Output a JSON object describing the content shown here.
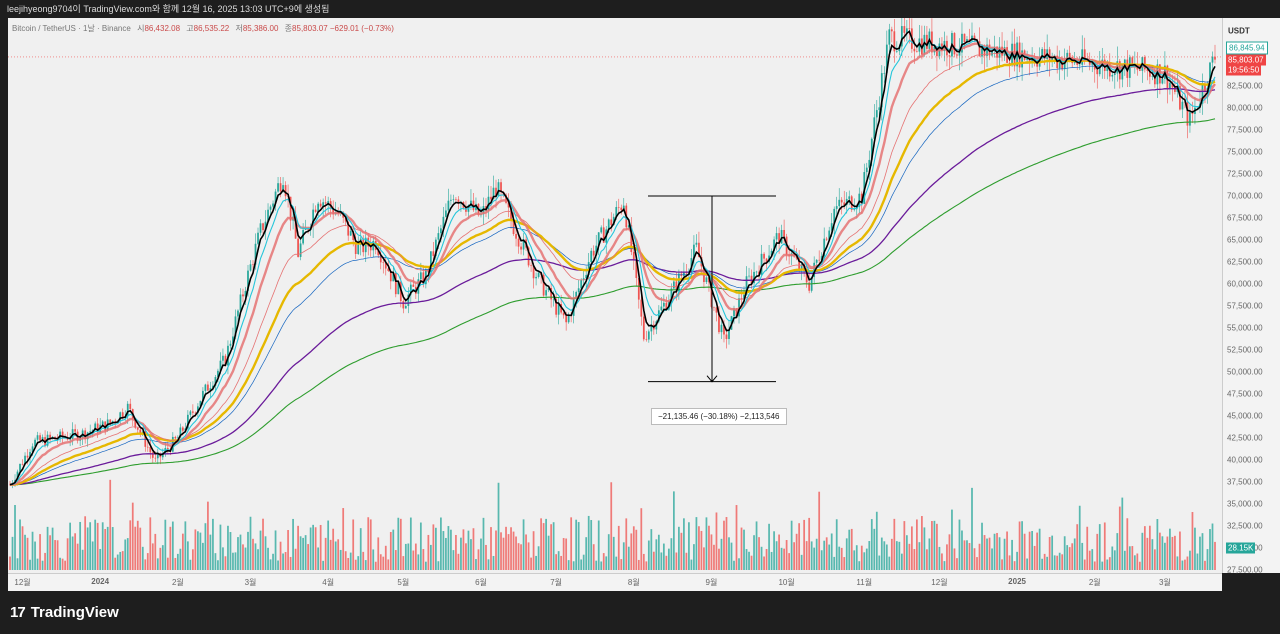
{
  "header": {
    "title": "leejihyeong9704이 TradingView.com와 함께 12월 16, 2025 13:03 UTC+9에 생성됨"
  },
  "legend": {
    "symbol": "Bitcoin / TetherUS · 1날 · Binance",
    "open_label": "시",
    "open": "86,432.08",
    "high_label": "고",
    "high": "86,535.22",
    "low_label": "저",
    "low": "85,386.00",
    "close_label": "종",
    "close": "85,803.07",
    "change": "−629.01 (−0.73%)"
  },
  "price_axis": {
    "currency": "USDT",
    "ticks": [
      "82,500.00",
      "80,000.00",
      "77,500.00",
      "75,000.00",
      "72,500.00",
      "70,000.00",
      "67,500.00",
      "65,000.00",
      "62,500.00",
      "60,000.00",
      "57,500.00",
      "55,000.00",
      "52,500.00",
      "50,000.00",
      "47,500.00",
      "45,000.00",
      "42,500.00",
      "40,000.00",
      "37,500.00",
      "35,000.00",
      "32,500.00",
      "30,000.00",
      "27,500.00"
    ],
    "high_marker": "86,845.94",
    "last_price": "85,803.07",
    "countdown": "19:56:50",
    "volume_marker": "28.15K"
  },
  "time_axis": {
    "ticks": [
      "12월",
      "2024",
      "2월",
      "3월",
      "4월",
      "5월",
      "6월",
      "7월",
      "8월",
      "9월",
      "10월",
      "11월",
      "12월",
      "2025",
      "2월",
      "3월"
    ]
  },
  "measure": {
    "text": "−21,135.46 (−30.18%) −2,113,546"
  },
  "brand": {
    "logo": "17",
    "name": "TradingView"
  },
  "colors": {
    "up": "#26a69a",
    "down": "#ef5350",
    "ema_black": "#000000",
    "ema_teal": "#26c6da",
    "ema_pink": "#e57373",
    "ema_gold": "#e6b800",
    "ema_blue": "#1565c0",
    "ema_purple": "#6a1b9a",
    "ema_green": "#2e9d2e"
  },
  "chart_data": {
    "type": "candlestick",
    "symbol": "Bitcoin / TetherUS",
    "interval": "1D",
    "exchange": "Binance",
    "y_range": [
      27500,
      87500
    ],
    "x": [
      "2023-12",
      "2024-01",
      "2024-02",
      "2024-03",
      "2024-04",
      "2024-05",
      "2024-06",
      "2024-07",
      "2024-08",
      "2024-09",
      "2024-10",
      "2024-11",
      "2024-12",
      "2025-01",
      "2025-02",
      "2025-03"
    ],
    "close_path": [
      [
        "2023-11-26",
        37200
      ],
      [
        "2023-12-05",
        42000
      ],
      [
        "2023-12-15",
        42500
      ],
      [
        "2023-12-25",
        43000
      ],
      [
        "2024-01-05",
        44200
      ],
      [
        "2024-01-12",
        46000
      ],
      [
        "2024-01-23",
        39800
      ],
      [
        "2024-02-01",
        42500
      ],
      [
        "2024-02-10",
        47000
      ],
      [
        "2024-02-20",
        51500
      ],
      [
        "2024-02-28",
        60000
      ],
      [
        "2024-03-05",
        66000
      ],
      [
        "2024-03-14",
        72500
      ],
      [
        "2024-03-20",
        63500
      ],
      [
        "2024-03-28",
        70000
      ],
      [
        "2024-04-05",
        68000
      ],
      [
        "2024-04-13",
        64000
      ],
      [
        "2024-04-20",
        64800
      ],
      [
        "2024-05-01",
        58000
      ],
      [
        "2024-05-10",
        61000
      ],
      [
        "2024-05-21",
        70500
      ],
      [
        "2024-06-01",
        67600
      ],
      [
        "2024-06-07",
        71000
      ],
      [
        "2024-06-15",
        66000
      ],
      [
        "2024-06-24",
        60500
      ],
      [
        "2024-07-05",
        55500
      ],
      [
        "2024-07-15",
        63500
      ],
      [
        "2024-07-28",
        69500
      ],
      [
        "2024-08-05",
        54000
      ],
      [
        "2024-08-15",
        58500
      ],
      [
        "2024-08-26",
        64000
      ],
      [
        "2024-09-06",
        53500
      ],
      [
        "2024-09-15",
        60000
      ],
      [
        "2024-09-28",
        65500
      ],
      [
        "2024-10-10",
        60000
      ],
      [
        "2024-10-20",
        68500
      ],
      [
        "2024-10-31",
        70000
      ],
      [
        "2024-11-11",
        88000
      ],
      [
        "2025-03-01",
        84000
      ],
      [
        "2025-03-11",
        78500
      ],
      [
        "2025-03-21",
        85803
      ]
    ],
    "emas": [
      {
        "name": "",
        "color": "#e57373",
        "values": [
          [
            0,
            36000
          ],
          [
            0.1,
            41000
          ],
          [
            0.2,
            60000
          ],
          [
            0.3,
            66000
          ],
          [
            0.45,
            62000
          ],
          [
            0.55,
            63000
          ],
          [
            0.72,
            63000
          ],
          [
            0.85,
            92000
          ]
        ]
      },
      {
        "name": "",
        "color": "#e6b800",
        "values": [
          [
            0,
            33000
          ],
          [
            0.13,
            43000
          ],
          [
            0.3,
            62000
          ],
          [
            0.4,
            66000
          ],
          [
            0.6,
            60000
          ],
          [
            0.7,
            62000
          ],
          [
            0.82,
            87500
          ]
        ]
      },
      {
        "name": "",
        "color": "#6a1b9a",
        "values": [
          [
            0,
            30000
          ],
          [
            0.2,
            42000
          ],
          [
            0.33,
            57000
          ],
          [
            0.45,
            65500
          ],
          [
            0.6,
            63000
          ],
          [
            0.73,
            62000
          ],
          [
            0.9,
            87000
          ]
        ]
      },
      {
        "name": "",
        "color": "#2e9d2e",
        "values": [
          [
            0,
            29000
          ],
          [
            0.2,
            34000
          ],
          [
            0.33,
            45500
          ],
          [
            0.5,
            58500
          ],
          [
            0.65,
            61000
          ],
          [
            0.8,
            70000
          ],
          [
            1,
            80000
          ]
        ]
      }
    ],
    "measure": {
      "from": 70000,
      "to": 48900,
      "change": -21135.46,
      "change_pct": -30.18,
      "ticks": -2113546
    },
    "volume_last": "28.15K"
  }
}
